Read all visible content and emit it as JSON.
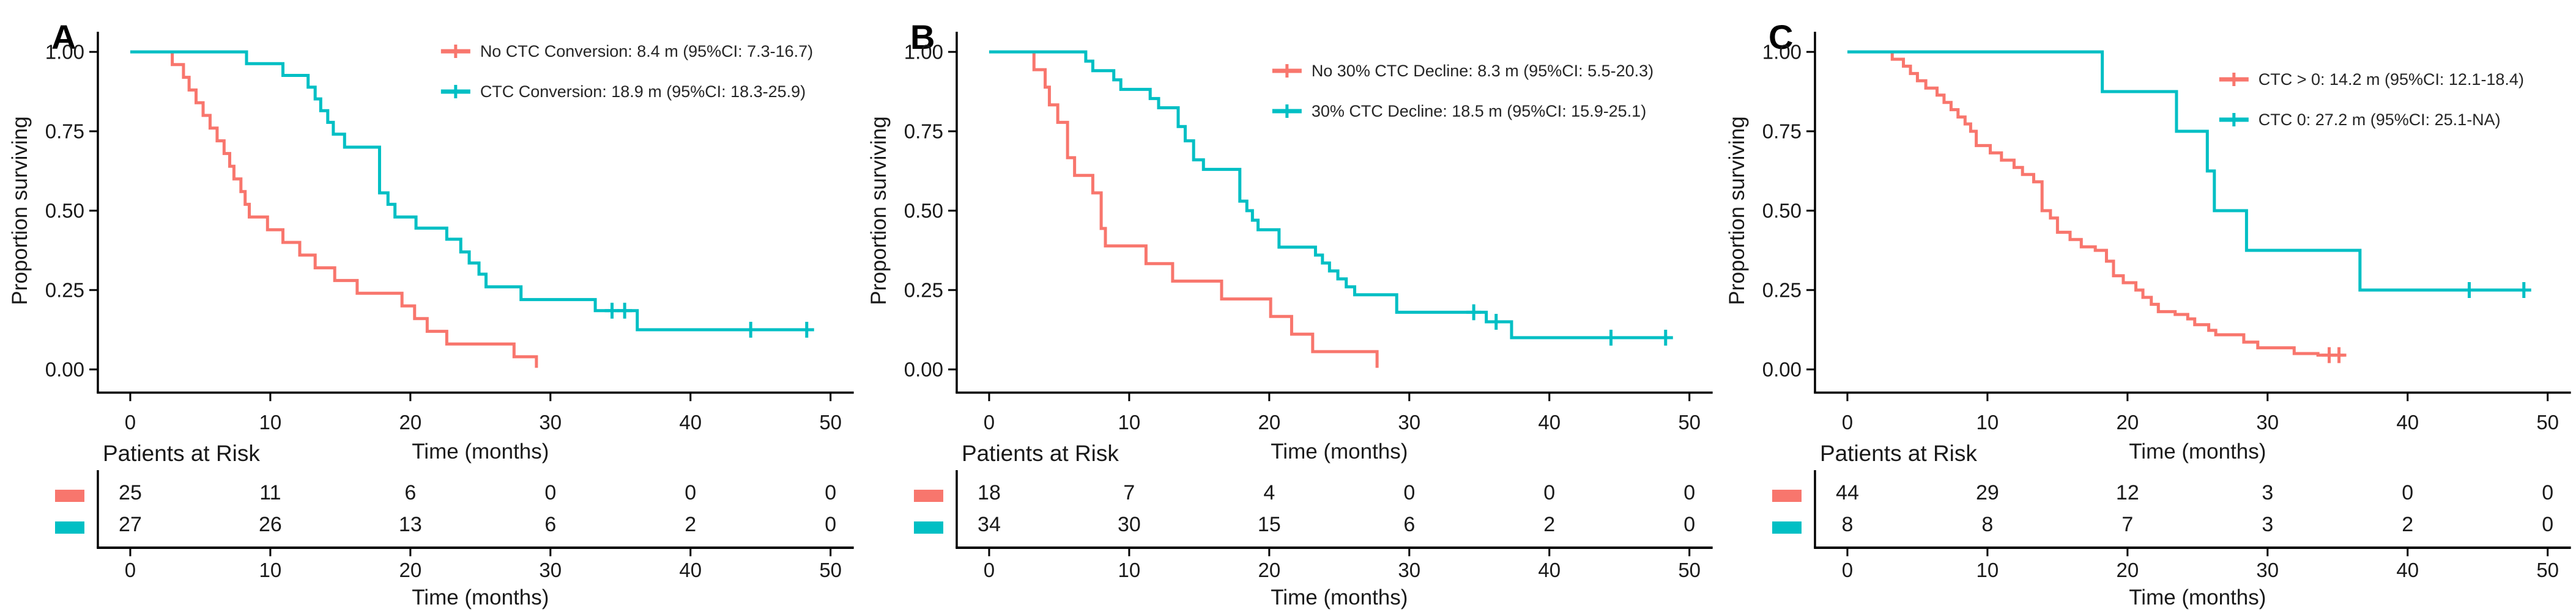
{
  "shared": {
    "x_axis_label": "Time (months)",
    "y_axis_label": "Proportion surviving",
    "risk_table_title": "Patients at Risk",
    "colors": {
      "group_red": "#F8766D",
      "group_teal": "#00BFC4",
      "axis": "#000000",
      "text": "#1a1a1a"
    }
  },
  "chart_data": [
    {
      "type": "line",
      "variant": "kaplan-meier-step",
      "panel_label": "A",
      "xlabel": "Time (months)",
      "ylabel": "Proportion surviving",
      "xlim": [
        0,
        52
      ],
      "ylim": [
        0,
        1
      ],
      "x_ticks": [
        0,
        10,
        20,
        30,
        40,
        50
      ],
      "y_ticks": [
        {
          "value": 1.0,
          "label": "1.00"
        },
        {
          "value": 0.75,
          "label": "0.75"
        },
        {
          "value": 0.5,
          "label": "0.50"
        },
        {
          "value": 0.25,
          "label": "0.25"
        },
        {
          "value": 0.0,
          "label": "0.00"
        }
      ],
      "legend_position": "top-right-inside",
      "series": [
        {
          "name": "No CTC Conversion: 8.4 m (95%CI: 7.3-16.7)",
          "color": "#F8766D",
          "median_months": 8.4,
          "ci": "7.3-16.7",
          "steps": [
            [
              0,
              1
            ],
            [
              3,
              0.96
            ],
            [
              3.8,
              0.92
            ],
            [
              4.2,
              0.88
            ],
            [
              4.7,
              0.84
            ],
            [
              5.2,
              0.8
            ],
            [
              5.7,
              0.76
            ],
            [
              6.2,
              0.72
            ],
            [
              6.7,
              0.68
            ],
            [
              7.1,
              0.64
            ],
            [
              7.4,
              0.6
            ],
            [
              7.9,
              0.56
            ],
            [
              8.2,
              0.52
            ],
            [
              8.5,
              0.48
            ],
            [
              9.8,
              0.44
            ],
            [
              10.9,
              0.4
            ],
            [
              12.1,
              0.36
            ],
            [
              13.2,
              0.32
            ],
            [
              14.6,
              0.28
            ],
            [
              16.2,
              0.24
            ],
            [
              19.4,
              0.2
            ],
            [
              20.3,
              0.16
            ],
            [
              21.2,
              0.12
            ],
            [
              22.6,
              0.08
            ],
            [
              27.4,
              0.04
            ],
            [
              29,
              0.005
            ]
          ],
          "censor_marks": [],
          "end_time": 29
        },
        {
          "name": "CTC Conversion: 18.9 m (95%CI: 18.3-25.9)",
          "color": "#00BFC4",
          "median_months": 18.9,
          "ci": "18.3-25.9",
          "steps": [
            [
              0,
              1
            ],
            [
              8.3,
              0.963
            ],
            [
              10.9,
              0.926
            ],
            [
              12.7,
              0.889
            ],
            [
              13.2,
              0.852
            ],
            [
              13.6,
              0.815
            ],
            [
              14.1,
              0.778
            ],
            [
              14.5,
              0.741
            ],
            [
              15.3,
              0.7
            ],
            [
              17.8,
              0.556
            ],
            [
              18.4,
              0.52
            ],
            [
              18.9,
              0.48
            ],
            [
              20.4,
              0.445
            ],
            [
              22.6,
              0.41
            ],
            [
              23.6,
              0.37
            ],
            [
              24.2,
              0.335
            ],
            [
              24.9,
              0.3
            ],
            [
              25.4,
              0.26
            ],
            [
              27.9,
              0.22
            ],
            [
              33.2,
              0.185
            ],
            [
              36.2,
              0.125
            ]
          ],
          "censor_marks": [
            [
              34.4,
              0.185
            ],
            [
              35.3,
              0.185
            ],
            [
              44.3,
              0.125
            ],
            [
              48.3,
              0.125
            ]
          ],
          "end_time": 48.5
        }
      ],
      "risk_table": {
        "title": "Patients at Risk",
        "times": [
          0,
          10,
          20,
          30,
          40,
          50
        ],
        "rows": [
          {
            "color": "#F8766D",
            "counts": [
              25,
              11,
              6,
              0,
              0,
              0
            ]
          },
          {
            "color": "#00BFC4",
            "counts": [
              27,
              26,
              13,
              6,
              2,
              0
            ]
          }
        ]
      }
    },
    {
      "type": "line",
      "variant": "kaplan-meier-step",
      "panel_label": "B",
      "xlabel": "Time (months)",
      "ylabel": "Proportion surviving",
      "xlim": [
        0,
        52
      ],
      "ylim": [
        0,
        1
      ],
      "x_ticks": [
        0,
        10,
        20,
        30,
        40,
        50
      ],
      "y_ticks": [
        {
          "value": 1.0,
          "label": "1.00"
        },
        {
          "value": 0.75,
          "label": "0.75"
        },
        {
          "value": 0.5,
          "label": "0.50"
        },
        {
          "value": 0.25,
          "label": "0.25"
        },
        {
          "value": 0.0,
          "label": "0.00"
        }
      ],
      "legend_position": "top-right-inside",
      "series": [
        {
          "name": "No 30% CTC Decline: 8.3 m (95%CI: 5.5-20.3)",
          "color": "#F8766D",
          "median_months": 8.3,
          "ci": "5.5-20.3",
          "steps": [
            [
              0,
              1
            ],
            [
              3.2,
              0.944
            ],
            [
              4,
              0.889
            ],
            [
              4.3,
              0.833
            ],
            [
              4.9,
              0.778
            ],
            [
              5.6,
              0.667
            ],
            [
              6.1,
              0.611
            ],
            [
              7.4,
              0.556
            ],
            [
              8,
              0.444
            ],
            [
              8.3,
              0.389
            ],
            [
              11.2,
              0.333
            ],
            [
              13.1,
              0.278
            ],
            [
              16.6,
              0.222
            ],
            [
              20.1,
              0.167
            ],
            [
              21.6,
              0.111
            ],
            [
              23.1,
              0.056
            ],
            [
              27.7,
              0.005
            ]
          ],
          "censor_marks": [],
          "end_time": 27.7
        },
        {
          "name": "30% CTC Decline: 18.5 m (95%CI: 15.9-25.1)",
          "color": "#00BFC4",
          "median_months": 18.5,
          "ci": "15.9-25.1",
          "steps": [
            [
              0,
              1
            ],
            [
              6.9,
              0.971
            ],
            [
              7.4,
              0.941
            ],
            [
              8.9,
              0.912
            ],
            [
              9.4,
              0.882
            ],
            [
              11.5,
              0.853
            ],
            [
              12.1,
              0.824
            ],
            [
              13.5,
              0.765
            ],
            [
              14,
              0.72
            ],
            [
              14.6,
              0.66
            ],
            [
              15.3,
              0.63
            ],
            [
              17.9,
              0.53
            ],
            [
              18.4,
              0.5
            ],
            [
              18.8,
              0.47
            ],
            [
              19.2,
              0.44
            ],
            [
              20.7,
              0.385
            ],
            [
              23.3,
              0.36
            ],
            [
              23.8,
              0.335
            ],
            [
              24.3,
              0.31
            ],
            [
              24.9,
              0.285
            ],
            [
              25.5,
              0.26
            ],
            [
              26.1,
              0.235
            ],
            [
              29.1,
              0.18
            ],
            [
              35.5,
              0.15
            ],
            [
              37.3,
              0.1
            ]
          ],
          "censor_marks": [
            [
              34.6,
              0.18
            ],
            [
              36.2,
              0.15
            ],
            [
              44.4,
              0.1
            ],
            [
              48.3,
              0.1
            ]
          ],
          "end_time": 48.5
        }
      ],
      "risk_table": {
        "title": "Patients at Risk",
        "times": [
          0,
          10,
          20,
          30,
          40,
          50
        ],
        "rows": [
          {
            "color": "#F8766D",
            "counts": [
              18,
              7,
              4,
              0,
              0,
              0
            ]
          },
          {
            "color": "#00BFC4",
            "counts": [
              34,
              30,
              15,
              6,
              2,
              0
            ]
          }
        ]
      }
    },
    {
      "type": "line",
      "variant": "kaplan-meier-step",
      "panel_label": "C",
      "xlabel": "Time (months)",
      "ylabel": "Proportion surviving",
      "xlim": [
        0,
        52
      ],
      "ylim": [
        0,
        1
      ],
      "x_ticks": [
        0,
        10,
        20,
        30,
        40,
        50
      ],
      "y_ticks": [
        {
          "value": 1.0,
          "label": "1.00"
        },
        {
          "value": 0.75,
          "label": "0.75"
        },
        {
          "value": 0.5,
          "label": "0.50"
        },
        {
          "value": 0.25,
          "label": "0.25"
        },
        {
          "value": 0.0,
          "label": "0.00"
        }
      ],
      "legend_position": "top-right-inside",
      "series": [
        {
          "name": "CTC > 0: 14.2 m (95%CI: 12.1-18.4)",
          "color": "#F8766D",
          "median_months": 14.2,
          "ci": "12.1-18.4",
          "steps": [
            [
              0,
              1
            ],
            [
              3.2,
              0.977
            ],
            [
              4,
              0.955
            ],
            [
              4.5,
              0.932
            ],
            [
              5,
              0.909
            ],
            [
              5.6,
              0.886
            ],
            [
              6.4,
              0.864
            ],
            [
              6.9,
              0.841
            ],
            [
              7.4,
              0.818
            ],
            [
              7.9,
              0.795
            ],
            [
              8.4,
              0.773
            ],
            [
              8.8,
              0.75
            ],
            [
              9.2,
              0.705
            ],
            [
              10.2,
              0.682
            ],
            [
              11,
              0.659
            ],
            [
              11.9,
              0.636
            ],
            [
              12.5,
              0.614
            ],
            [
              13.3,
              0.591
            ],
            [
              13.9,
              0.5
            ],
            [
              14.5,
              0.477
            ],
            [
              15,
              0.432
            ],
            [
              15.9,
              0.409
            ],
            [
              16.7,
              0.386
            ],
            [
              17.7,
              0.375
            ],
            [
              18.5,
              0.341
            ],
            [
              19,
              0.295
            ],
            [
              19.7,
              0.273
            ],
            [
              20.6,
              0.25
            ],
            [
              21.1,
              0.227
            ],
            [
              21.7,
              0.205
            ],
            [
              22.2,
              0.182
            ],
            [
              23.4,
              0.173
            ],
            [
              24.3,
              0.159
            ],
            [
              24.8,
              0.141
            ],
            [
              25.8,
              0.123
            ],
            [
              26.3,
              0.109
            ],
            [
              28.3,
              0.086
            ],
            [
              29.3,
              0.068
            ],
            [
              31.9,
              0.05
            ],
            [
              33.6,
              0.045
            ]
          ],
          "censor_marks": [
            [
              34.4,
              0.045
            ],
            [
              35.1,
              0.045
            ]
          ],
          "end_time": 35.5
        },
        {
          "name": "CTC 0: 27.2 m (95%CI: 25.1-NA)",
          "color": "#00BFC4",
          "median_months": 27.2,
          "ci": "25.1-NA",
          "steps": [
            [
              0,
              1
            ],
            [
              18.2,
              0.875
            ],
            [
              23.5,
              0.75
            ],
            [
              25.7,
              0.625
            ],
            [
              26.2,
              0.5
            ],
            [
              28.5,
              0.375
            ],
            [
              36.6,
              0.25
            ]
          ],
          "censor_marks": [
            [
              44.4,
              0.25
            ],
            [
              48.3,
              0.25
            ]
          ],
          "end_time": 48.5
        }
      ],
      "risk_table": {
        "title": "Patients at Risk",
        "times": [
          0,
          10,
          20,
          30,
          40,
          50
        ],
        "rows": [
          {
            "color": "#F8766D",
            "counts": [
              44,
              29,
              12,
              3,
              0,
              0
            ]
          },
          {
            "color": "#00BFC4",
            "counts": [
              8,
              8,
              7,
              3,
              2,
              0
            ]
          }
        ]
      }
    }
  ]
}
